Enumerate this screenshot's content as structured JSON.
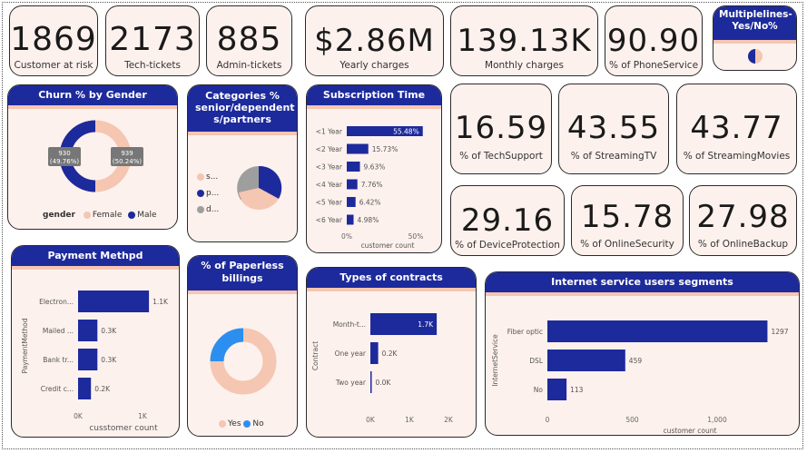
{
  "kpis": [
    {
      "value": "1869",
      "label": "Customer at risk"
    },
    {
      "value": "2173",
      "label": "Tech-tickets"
    },
    {
      "value": "885",
      "label": "Admin-tickets"
    },
    {
      "value": "$2.86M",
      "label": "Yearly charges"
    },
    {
      "value": "139.13K",
      "label": "Monthly charges"
    },
    {
      "value": "90.90",
      "label": "% of PhoneService"
    },
    {
      "value": "16.59",
      "label": "% of TechSupport"
    },
    {
      "value": "43.55",
      "label": "% of StreamingTV"
    },
    {
      "value": "43.77",
      "label": "% of StreamingMovies"
    },
    {
      "value": "29.16",
      "label": "% of DeviceProtection"
    },
    {
      "value": "15.78",
      "label": "% of OnlineSecurity"
    },
    {
      "value": "27.98",
      "label": "% of OnlineBackup"
    }
  ],
  "multiplelines": {
    "title": "Multiplelines-Yes/No%"
  },
  "colors": {
    "navy": "#1d2a9c",
    "peach": "#f5c6b1",
    "grey": "#9e9e9e",
    "blue": "#2c8ff0",
    "card": "#fdf1ed"
  },
  "churn_gender": {
    "title": "Churn % by Gender",
    "legend_title": "gender",
    "legend": [
      "Female",
      "Male"
    ],
    "label_female": "939\n(50.24%)",
    "label_male": "930\n(49.76%)"
  },
  "categories": {
    "title": "Categories % senior/dependent s/partners",
    "legend": [
      "s...",
      "p...",
      "d..."
    ]
  },
  "subscription": {
    "title": "Subscription Time",
    "xlabel": "customer count"
  },
  "payment": {
    "title": "Payment Methpd",
    "ylabel": "PaymentMethod",
    "xlabel": "cusstomer count"
  },
  "paperless": {
    "title": "% of Paperless billings",
    "legend": [
      "Yes",
      "No"
    ]
  },
  "contracts": {
    "title": "Types of contracts",
    "ylabel": "Contract"
  },
  "internet": {
    "title": "Internet service users segments",
    "ylabel": "InternetService",
    "xlabel": "customer count"
  },
  "chart_data": [
    {
      "id": "churn_gender",
      "type": "pie",
      "title": "Churn % by Gender",
      "categories": [
        "Female",
        "Male"
      ],
      "values": [
        939,
        930
      ],
      "percent": [
        50.24,
        49.76
      ],
      "donut": true
    },
    {
      "id": "categories",
      "type": "pie",
      "title": "Categories % senior/dependent s/partners",
      "categories": [
        "s...",
        "p...",
        "d..."
      ],
      "values": [
        30,
        45,
        25
      ],
      "donut": false
    },
    {
      "id": "subscription",
      "type": "bar",
      "title": "Subscription Time",
      "orientation": "horizontal",
      "categories": [
        "<1 Year",
        "<2 Year",
        "<3 Year",
        "<4 Year",
        "<5 Year",
        "<6 Year"
      ],
      "values": [
        55.48,
        15.73,
        9.63,
        7.76,
        6.42,
        4.98
      ],
      "value_labels": [
        "55.48%",
        "15.73%",
        "9.63%",
        "7.76%",
        "6.42%",
        "4.98%"
      ],
      "xlabel": "customer count",
      "xlim": [
        0,
        55
      ],
      "ticks": [
        "0%",
        "50%"
      ]
    },
    {
      "id": "payment",
      "type": "bar",
      "title": "Payment Methpd",
      "orientation": "horizontal",
      "categories": [
        "Electron...",
        "Mailed ...",
        "Bank tr...",
        "Credit c..."
      ],
      "values": [
        1.1,
        0.3,
        0.3,
        0.2
      ],
      "value_labels": [
        "1.1K",
        "0.3K",
        "0.3K",
        "0.2K"
      ],
      "xlabel": "cusstomer count",
      "ylabel": "PaymentMethod",
      "xlim": [
        0,
        1
      ],
      "ticks": [
        "0K",
        "1K"
      ]
    },
    {
      "id": "paperless",
      "type": "pie",
      "title": "% of Paperless billings",
      "categories": [
        "Yes",
        "No"
      ],
      "values": [
        80,
        20
      ],
      "donut": true
    },
    {
      "id": "contracts",
      "type": "bar",
      "title": "Types of contracts",
      "orientation": "horizontal",
      "categories": [
        "Month-t...",
        "One year",
        "Two year"
      ],
      "values": [
        1.7,
        0.2,
        0.0
      ],
      "value_labels": [
        "1.7K",
        "0.2K",
        "0.0K"
      ],
      "ylabel": "Contract",
      "xlim": [
        0,
        2
      ],
      "ticks": [
        "0K",
        "1K",
        "2K"
      ]
    },
    {
      "id": "internet",
      "type": "bar",
      "title": "Internet service users segments",
      "orientation": "horizontal",
      "categories": [
        "Fiber optic",
        "DSL",
        "No"
      ],
      "values": [
        1297,
        459,
        113
      ],
      "value_labels": [
        "1297",
        "459",
        "113"
      ],
      "xlabel": "customer count",
      "ylabel": "InternetService",
      "xlim": [
        0,
        1300
      ],
      "ticks": [
        "0",
        "500",
        "1,000"
      ]
    }
  ]
}
